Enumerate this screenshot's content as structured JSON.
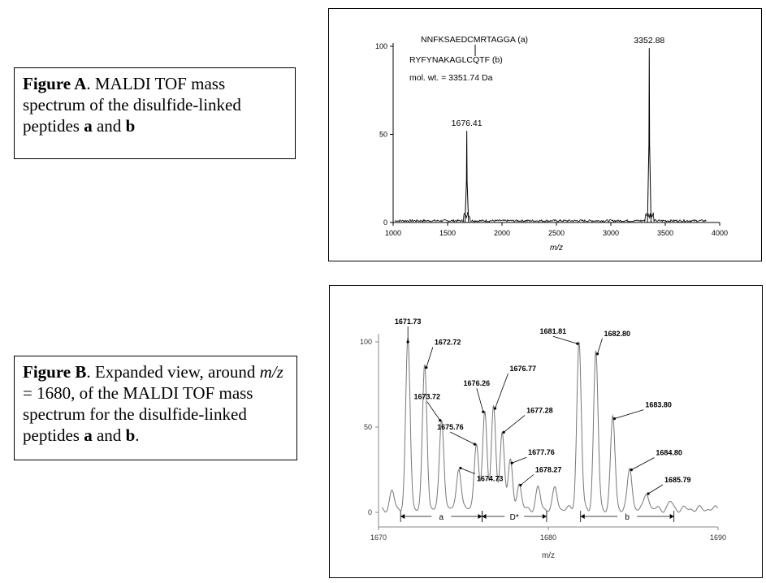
{
  "captions": {
    "a": {
      "label": "Figure A",
      "text1": ". MALDI TOF mass spectrum of the disulfide-linked peptides ",
      "pep_a": "a",
      "and": " and ",
      "pep_b": "b"
    },
    "b": {
      "label": "Figure B",
      "text1": ". Expanded view, around ",
      "mz": "m/z",
      "text2": " = 1680, of the MALDI TOF mass spectrum for the disulfide-linked peptides ",
      "pep_a": "a",
      "and": " and ",
      "pep_b": "b",
      "end": "."
    }
  },
  "chart_data": [
    {
      "type": "line",
      "xlabel": "m/z",
      "xlim": [
        1000,
        4000
      ],
      "ylim": [
        0,
        100
      ],
      "xticks": [
        1000,
        1500,
        2000,
        2500,
        3000,
        3500,
        4000
      ],
      "yticks": [
        0,
        50,
        100
      ],
      "peaks": [
        {
          "x": 1676.41,
          "y": 52,
          "label": "1676.41"
        },
        {
          "x": 3352.88,
          "y": 99,
          "label": "3352.88"
        }
      ],
      "annotations": {
        "seq_a": "NNFKSAEDCMRTAGGA (a)",
        "seq_b": "RYFYNAKAGLCQTF (b)",
        "molwt": "mol. wt. = 3351.74 Da"
      }
    },
    {
      "type": "line",
      "xlabel": "m/z",
      "xlim": [
        1670,
        1690
      ],
      "ylim": [
        0,
        100
      ],
      "xticks": [
        1670,
        1680,
        1690
      ],
      "yticks": [
        0,
        50,
        100
      ],
      "peaks": [
        {
          "x": 1671.73,
          "y": 99,
          "label": "1671.73"
        },
        {
          "x": 1672.72,
          "y": 84,
          "label": "1672.72"
        },
        {
          "x": 1673.72,
          "y": 53,
          "label": "1673.72"
        },
        {
          "x": 1674.73,
          "y": 25,
          "label": "1674.73"
        },
        {
          "x": 1675.76,
          "y": 39,
          "label": "1675.76"
        },
        {
          "x": 1676.26,
          "y": 58,
          "label": "1676.26"
        },
        {
          "x": 1676.77,
          "y": 60,
          "label": "1676.77"
        },
        {
          "x": 1677.28,
          "y": 46,
          "label": "1677.28"
        },
        {
          "x": 1677.76,
          "y": 28,
          "label": "1677.76"
        },
        {
          "x": 1678.27,
          "y": 15,
          "label": "1678.27"
        },
        {
          "x": 1681.81,
          "y": 98,
          "label": "1681.81"
        },
        {
          "x": 1682.8,
          "y": 92,
          "label": "1682.80"
        },
        {
          "x": 1683.8,
          "y": 54,
          "label": "1683.80"
        },
        {
          "x": 1684.8,
          "y": 24,
          "label": "1684.80"
        },
        {
          "x": 1685.79,
          "y": 10,
          "label": "1685.79"
        }
      ],
      "minor_peaks": [
        {
          "x": 1669.8,
          "y": 10
        },
        {
          "x": 1670.8,
          "y": 10
        },
        {
          "x": 1679.4,
          "y": 12
        },
        {
          "x": 1680.4,
          "y": 12
        },
        {
          "x": 1687.2,
          "y": 4
        }
      ],
      "ranges": [
        {
          "label": "a",
          "from": 1671.3,
          "to": 1676.1
        },
        {
          "label": "D*",
          "from": 1676.1,
          "to": 1679.9
        },
        {
          "label": "b",
          "from": 1681.9,
          "to": 1687.4
        }
      ]
    }
  ]
}
